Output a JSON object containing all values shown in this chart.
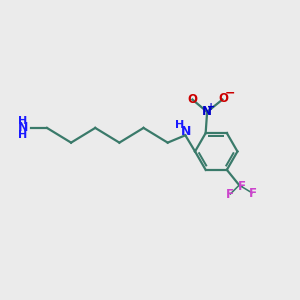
{
  "background_color": "#ebebeb",
  "bond_color": "#3a7a6a",
  "bond_width": 1.6,
  "nh2_color": "#1a1aff",
  "nh_color": "#1a1aff",
  "nitro_N_color": "#0000cc",
  "nitro_O_color": "#cc0000",
  "cf3_color": "#cc44cc",
  "figsize": [
    3.0,
    3.0
  ],
  "dpi": 100,
  "xlim": [
    0,
    10
  ],
  "ylim": [
    0,
    10
  ]
}
